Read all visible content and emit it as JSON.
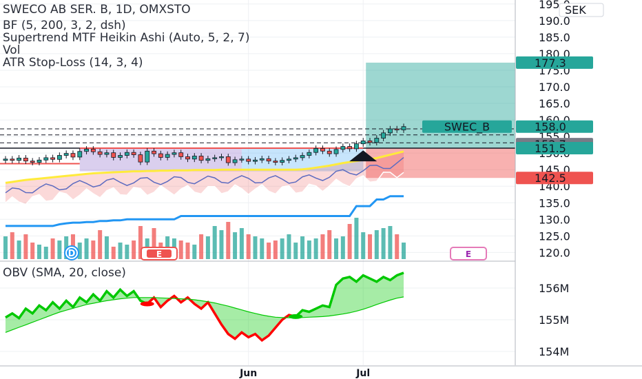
{
  "symbol_line": "SWECO AB SER. B, 1D, OMXSTO",
  "indicators": [
    "BF (5, 200, 3, 2, dsh)",
    "Supertrend MTF Heikin Ashi (Auto, 5, 2, 7)",
    "Vol",
    "ATR Stop-Loss (14, 3, 4)"
  ],
  "currency": "SEK",
  "obv_label": "OBV (SMA, 20, close)",
  "event_markers": [
    "D",
    "E",
    "E"
  ],
  "colors": {
    "up": "#26a69a",
    "down": "#ef5350",
    "supertrend": "#ffeb3b",
    "atr_stop": "#2196f3",
    "obv_up": "#00c800",
    "obv_down": "#ff0000"
  },
  "chart_data": [
    {
      "type": "candlestick",
      "title": "SWECO AB SER. B, 1D, OMXSTO",
      "x_axis_labels": [
        "Jun",
        "Jul"
      ],
      "y_axis_ticks": [
        195.0,
        190.0,
        185.0,
        180.0,
        175.0,
        170.0,
        165.0,
        160.0,
        155.0,
        150.0,
        145.0,
        140.0,
        135.0,
        130.0,
        125.0,
        120.0
      ],
      "ylim": [
        118,
        196
      ],
      "price_labels": [
        {
          "name": "",
          "value": 177.3
        },
        {
          "name": "SWEC_B",
          "value": 158.0
        },
        {
          "name": "",
          "value": 152.7
        },
        {
          "name": "",
          "value": 151.5
        },
        {
          "name": "",
          "value": 142.5
        }
      ],
      "close": [
        148.2,
        147.8,
        148.5,
        147.6,
        147.2,
        147.9,
        148.6,
        148.1,
        149.3,
        149.9,
        148.8,
        150.5,
        151.2,
        150.4,
        149.6,
        150.1,
        148.7,
        149.3,
        150.2,
        149.5,
        147.3,
        150.6,
        149.8,
        148.7,
        149.6,
        150.1,
        148.9,
        148.2,
        149.1,
        147.8,
        148.3,
        148.6,
        148.9,
        147.1,
        148.0,
        148.2,
        147.5,
        147.9,
        148.3,
        147.6,
        147.2,
        147.8,
        148.2,
        148.6,
        149.3,
        150.2,
        151.4,
        150.6,
        149.8,
        151.1,
        152.0,
        151.3,
        152.8,
        153.7,
        153.2,
        154.5,
        156.1,
        157.3,
        157.0,
        158.0
      ],
      "supertrend": [
        141.0,
        141.3,
        141.6,
        141.9,
        142.1,
        142.3,
        142.5,
        142.7,
        142.9,
        143.1,
        143.3,
        143.5,
        143.7,
        143.9,
        144.0,
        144.1,
        144.2,
        144.3,
        144.4,
        144.5,
        144.5,
        144.6,
        144.6,
        144.7,
        144.7,
        144.8,
        144.8,
        144.8,
        144.9,
        144.9,
        144.9,
        144.9,
        145.0,
        145.0,
        145.0,
        145.0,
        145.0,
        145.0,
        145.0,
        145.0,
        145.0,
        145.0,
        145.0,
        145.0,
        145.1,
        145.3,
        145.6,
        145.9,
        146.2,
        146.6,
        147.0,
        147.3,
        147.6,
        147.9,
        148.2,
        148.5,
        149.0,
        149.5,
        150.0,
        150.5
      ],
      "atr_stop": [
        128.0,
        128.0,
        128.0,
        128.0,
        128.0,
        128.0,
        128.0,
        128.0,
        128.5,
        128.8,
        129.0,
        129.0,
        129.2,
        129.2,
        129.5,
        129.5,
        129.7,
        129.7,
        130.0,
        130.0,
        130.0,
        130.0,
        130.0,
        130.0,
        130.0,
        130.0,
        131.0,
        131.0,
        131.0,
        131.0,
        131.0,
        131.0,
        131.0,
        131.0,
        131.0,
        131.0,
        131.0,
        131.0,
        131.0,
        131.0,
        131.0,
        131.0,
        131.0,
        131.0,
        131.0,
        131.0,
        131.0,
        131.0,
        131.0,
        131.0,
        131.0,
        131.0,
        134.0,
        134.0,
        134.0,
        136.0,
        136.0,
        137.0,
        137.0,
        137.0
      ],
      "volume": [
        0.55,
        0.65,
        0.45,
        0.6,
        0.4,
        0.35,
        0.3,
        0.5,
        0.45,
        0.55,
        0.6,
        0.4,
        0.5,
        0.45,
        0.7,
        0.55,
        0.3,
        0.4,
        0.35,
        0.45,
        0.8,
        0.5,
        0.75,
        0.4,
        0.55,
        0.5,
        0.45,
        0.4,
        0.35,
        0.6,
        0.55,
        0.8,
        0.7,
        0.9,
        0.65,
        0.75,
        0.6,
        0.55,
        0.5,
        0.4,
        0.45,
        0.5,
        0.6,
        0.4,
        0.55,
        0.45,
        0.5,
        0.6,
        0.7,
        0.5,
        0.55,
        0.85,
        1.0,
        0.65,
        0.6,
        0.7,
        0.75,
        0.8,
        0.6,
        0.4
      ]
    },
    {
      "type": "line",
      "title": "OBV (SMA, 20, close)",
      "y_axis_ticks": [
        "156M",
        "155M",
        "154M"
      ],
      "ylim": [
        153.7,
        156.5
      ],
      "series": [
        {
          "name": "",
          "values": [
            155.07,
            155.2,
            155.05,
            155.35,
            155.2,
            155.45,
            155.3,
            155.55,
            155.35,
            155.6,
            155.4,
            155.7,
            155.55,
            155.8,
            155.6,
            155.9,
            155.7,
            155.95,
            155.75,
            155.9,
            155.6,
            155.5,
            155.7,
            155.4,
            155.6,
            155.75,
            155.55,
            155.7,
            155.5,
            155.35,
            155.55,
            155.2,
            154.85,
            154.55,
            154.4,
            154.6,
            154.45,
            154.55,
            154.35,
            154.5,
            154.75,
            155.0,
            155.15,
            155.1,
            155.3,
            155.25,
            155.35,
            155.45,
            155.4,
            156.1,
            156.3,
            156.35,
            156.2,
            156.4,
            156.3,
            156.2,
            156.35,
            156.25,
            156.4,
            156.48
          ]
        },
        {
          "name": "",
          "values": [
            154.6,
            154.68,
            154.76,
            154.84,
            154.92,
            155.0,
            155.08,
            155.16,
            155.24,
            155.3,
            155.36,
            155.42,
            155.48,
            155.52,
            155.56,
            155.6,
            155.63,
            155.66,
            155.68,
            155.7,
            155.7,
            155.7,
            155.7,
            155.69,
            155.68,
            155.67,
            155.66,
            155.65,
            155.63,
            155.6,
            155.57,
            155.53,
            155.48,
            155.43,
            155.37,
            155.31,
            155.25,
            155.2,
            155.15,
            155.11,
            155.08,
            155.07,
            155.06,
            155.06,
            155.07,
            155.08,
            155.09,
            155.1,
            155.12,
            155.15,
            155.18,
            155.22,
            155.27,
            155.33,
            155.4,
            155.48,
            155.55,
            155.62,
            155.68,
            155.72
          ]
        }
      ]
    }
  ]
}
